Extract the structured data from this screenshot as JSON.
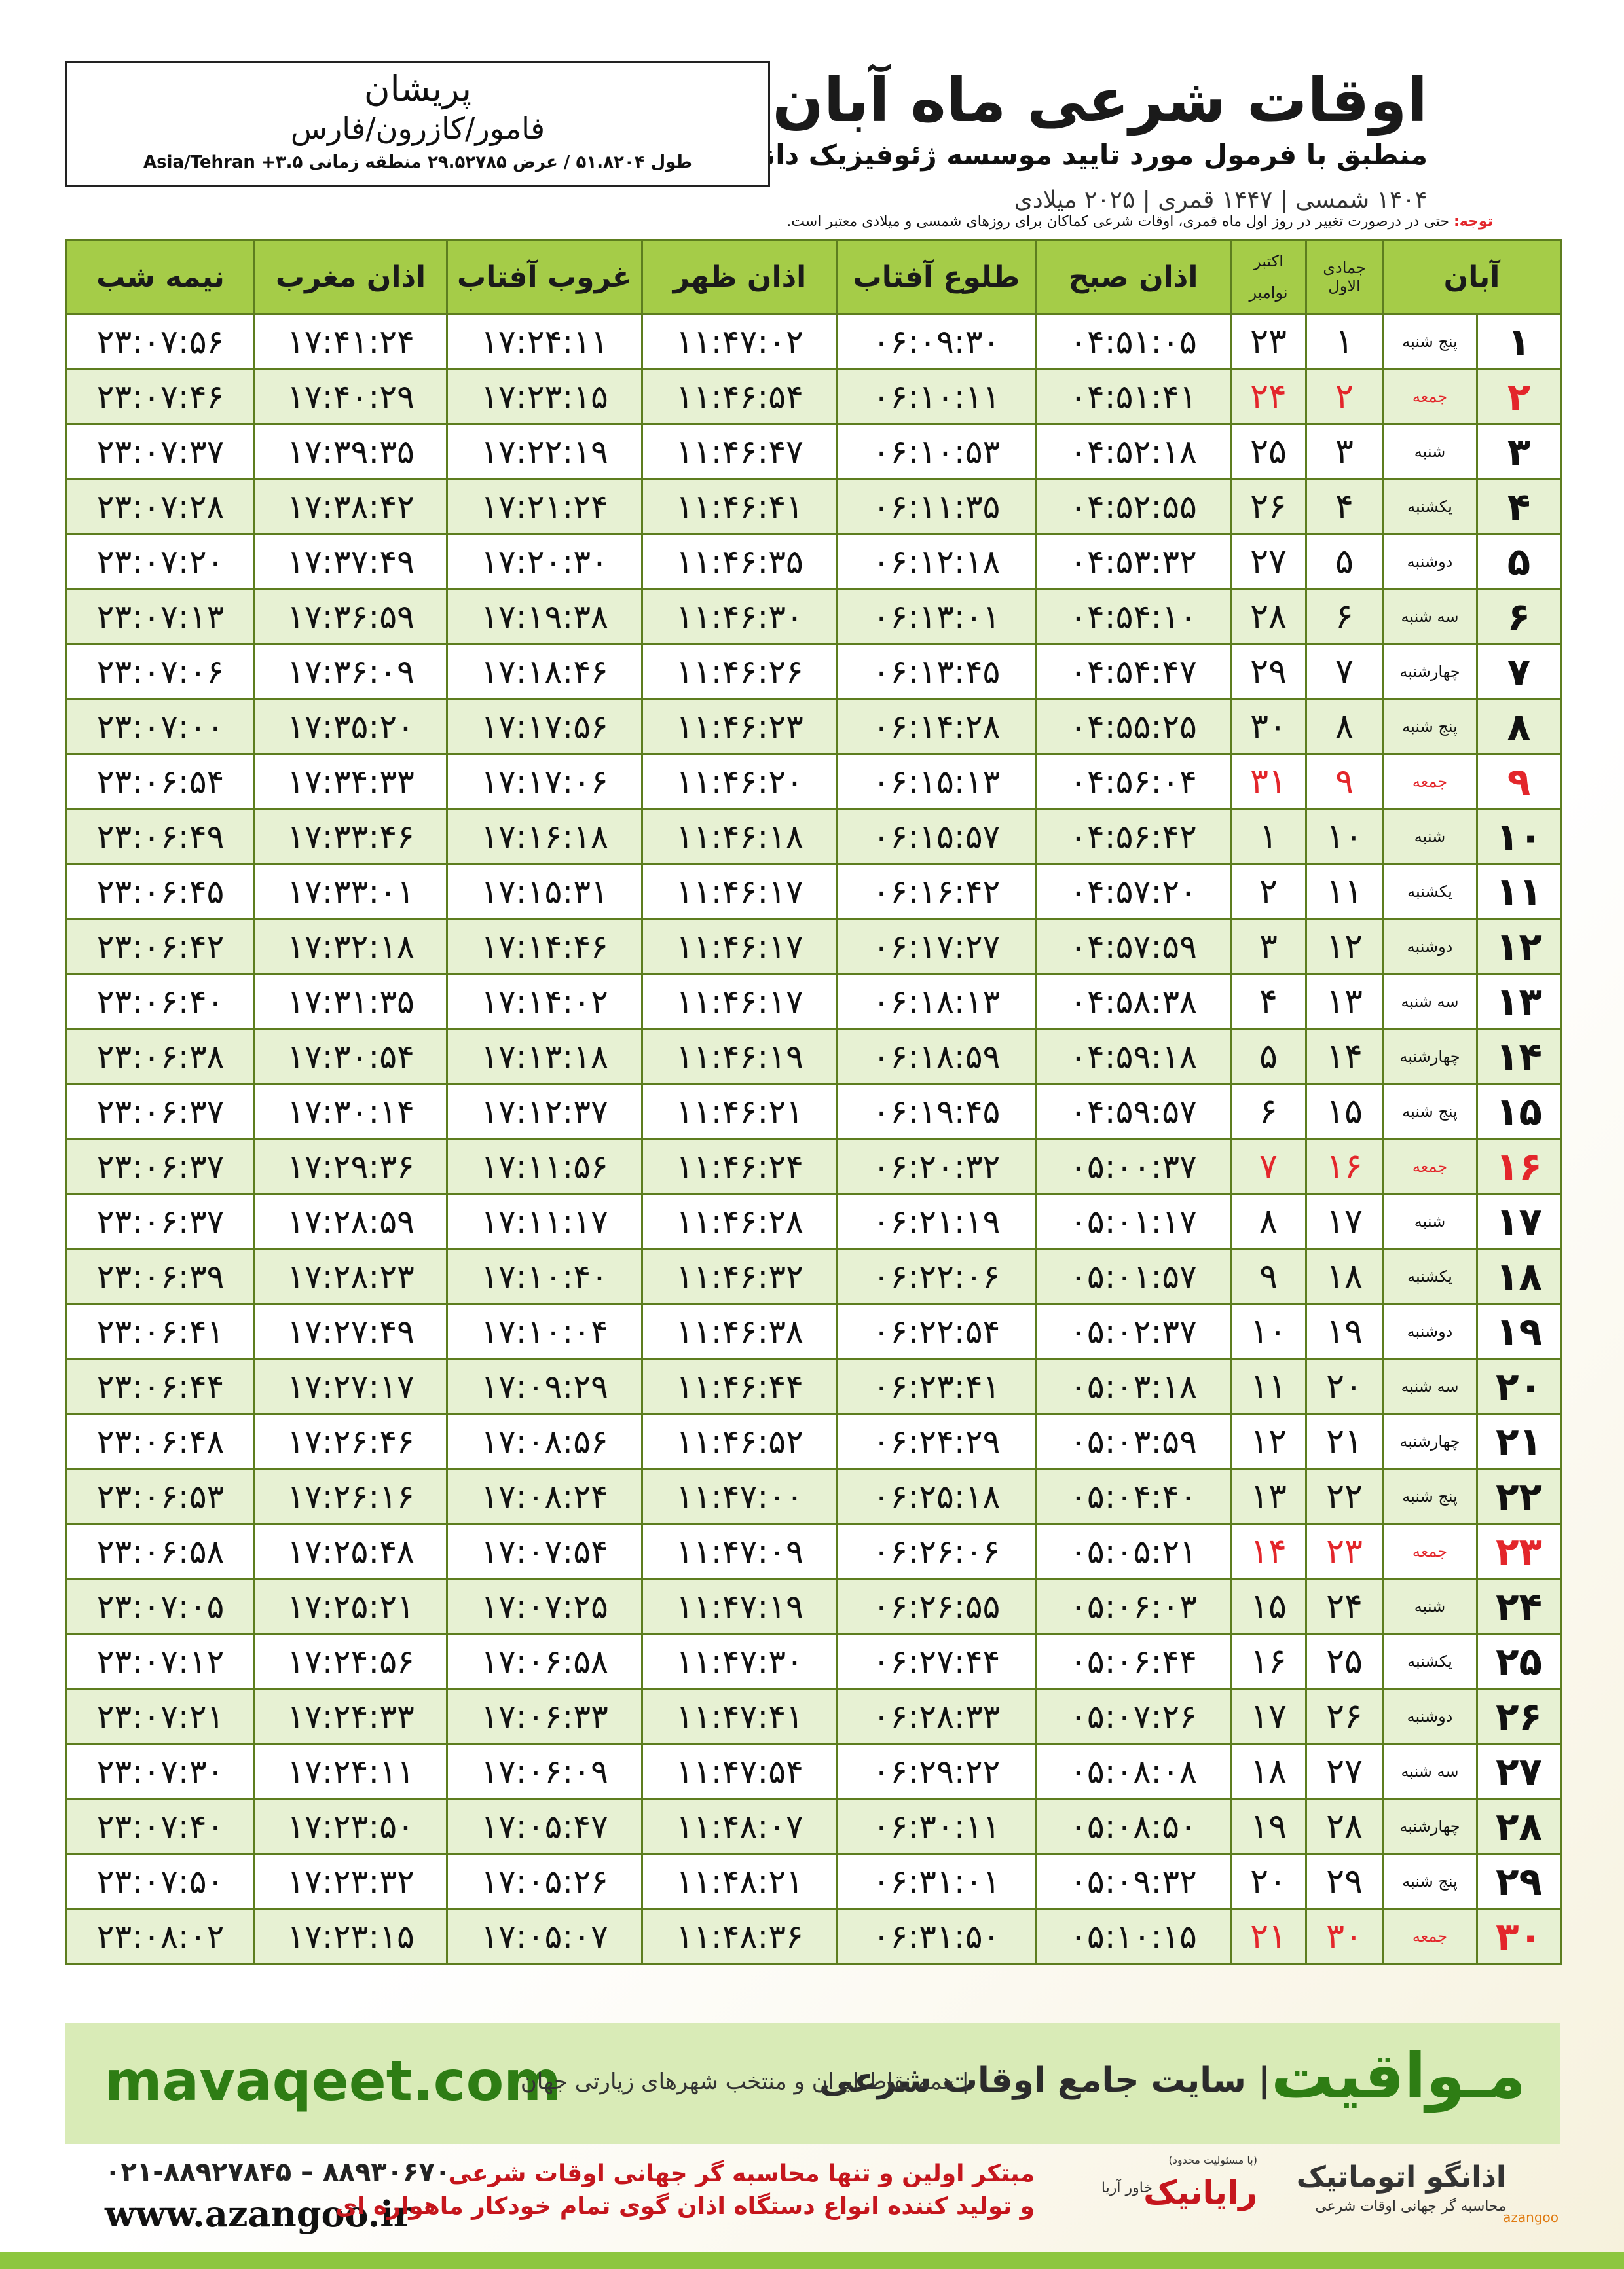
{
  "header": {
    "title": "اوقات شرعی ماه آبان",
    "subtitle": "منطبق با فرمول مورد تایید موسسه ژئوفیزیک دانشگاه تهران",
    "date_line": "۱۴۰۴ شمسی | ۱۴۴۷ قمری | ۲۰۲۵ میلادی"
  },
  "location": {
    "city": "پریشان",
    "region": "فامور/کازرون/فارس",
    "coords": "طول ۵۱.۸۲۰۴ / عرض ۲۹.۵۲۷۸۵ منطقه زمانی ۳.۵+ Asia/Tehran"
  },
  "note": {
    "label": "توجه:",
    "text": "حتی در درصورت تغییر در روز اول ماه قمری، اوقات شرعی کماکان برای روزهای شمسی و میلادی معتبر است."
  },
  "table": {
    "header": {
      "day": "آبان",
      "qamari": "جمادی الاول",
      "greg_1": "اکتبر",
      "greg_2": "نوامبر",
      "fajr": "اذان صبح",
      "sunrise": "طلوع آفتاب",
      "dhuhr": "اذان ظهر",
      "sunset": "غروب آفتاب",
      "maghrib": "اذان مغرب",
      "midnight": "نیمه شب"
    },
    "rows": [
      {
        "cells": [
          "۱",
          "پنج شنبه",
          "۱",
          "۲۳",
          "۰۴:۵۱:۰۵",
          "۰۶:۰۹:۳۰",
          "۱۱:۴۷:۰۲",
          "۱۷:۲۴:۱۱",
          "۱۷:۴۱:۲۴",
          "۲۳:۰۷:۵۶"
        ]
      },
      {
        "cells": [
          "۲",
          "جمعه",
          "۲",
          "۲۴",
          "۰۴:۵۱:۴۱",
          "۰۶:۱۰:۱۱",
          "۱۱:۴۶:۵۴",
          "۱۷:۲۳:۱۵",
          "۱۷:۴۰:۲۹",
          "۲۳:۰۷:۴۶"
        ],
        "color": "#e3262b"
      },
      {
        "cells": [
          "۳",
          "شنبه",
          "۳",
          "۲۵",
          "۰۴:۵۲:۱۸",
          "۰۶:۱۰:۵۳",
          "۱۱:۴۶:۴۷",
          "۱۷:۲۲:۱۹",
          "۱۷:۳۹:۳۵",
          "۲۳:۰۷:۳۷"
        ]
      },
      {
        "cells": [
          "۴",
          "یکشنبه",
          "۴",
          "۲۶",
          "۰۴:۵۲:۵۵",
          "۰۶:۱۱:۳۵",
          "۱۱:۴۶:۴۱",
          "۱۷:۲۱:۲۴",
          "۱۷:۳۸:۴۲",
          "۲۳:۰۷:۲۸"
        ]
      },
      {
        "cells": [
          "۵",
          "دوشنبه",
          "۵",
          "۲۷",
          "۰۴:۵۳:۳۲",
          "۰۶:۱۲:۱۸",
          "۱۱:۴۶:۳۵",
          "۱۷:۲۰:۳۰",
          "۱۷:۳۷:۴۹",
          "۲۳:۰۷:۲۰"
        ]
      },
      {
        "cells": [
          "۶",
          "سه شنبه",
          "۶",
          "۲۸",
          "۰۴:۵۴:۱۰",
          "۰۶:۱۳:۰۱",
          "۱۱:۴۶:۳۰",
          "۱۷:۱۹:۳۸",
          "۱۷:۳۶:۵۹",
          "۲۳:۰۷:۱۳"
        ]
      },
      {
        "cells": [
          "۷",
          "چهارشنبه",
          "۷",
          "۲۹",
          "۰۴:۵۴:۴۷",
          "۰۶:۱۳:۴۵",
          "۱۱:۴۶:۲۶",
          "۱۷:۱۸:۴۶",
          "۱۷:۳۶:۰۹",
          "۲۳:۰۷:۰۶"
        ]
      },
      {
        "cells": [
          "۸",
          "پنج شنبه",
          "۸",
          "۳۰",
          "۰۴:۵۵:۲۵",
          "۰۶:۱۴:۲۸",
          "۱۱:۴۶:۲۳",
          "۱۷:۱۷:۵۶",
          "۱۷:۳۵:۲۰",
          "۲۳:۰۷:۰۰"
        ]
      },
      {
        "cells": [
          "۹",
          "جمعه",
          "۹",
          "۳۱",
          "۰۴:۵۶:۰۴",
          "۰۶:۱۵:۱۳",
          "۱۱:۴۶:۲۰",
          "۱۷:۱۷:۰۶",
          "۱۷:۳۴:۳۳",
          "۲۳:۰۶:۵۴"
        ],
        "color": "#e3262b"
      },
      {
        "cells": [
          "۱۰",
          "شنبه",
          "۱۰",
          "۱",
          "۰۴:۵۶:۴۲",
          "۰۶:۱۵:۵۷",
          "۱۱:۴۶:۱۸",
          "۱۷:۱۶:۱۸",
          "۱۷:۳۳:۴۶",
          "۲۳:۰۶:۴۹"
        ]
      },
      {
        "cells": [
          "۱۱",
          "یکشنبه",
          "۱۱",
          "۲",
          "۰۴:۵۷:۲۰",
          "۰۶:۱۶:۴۲",
          "۱۱:۴۶:۱۷",
          "۱۷:۱۵:۳۱",
          "۱۷:۳۳:۰۱",
          "۲۳:۰۶:۴۵"
        ]
      },
      {
        "cells": [
          "۱۲",
          "دوشنبه",
          "۱۲",
          "۳",
          "۰۴:۵۷:۵۹",
          "۰۶:۱۷:۲۷",
          "۱۱:۴۶:۱۷",
          "۱۷:۱۴:۴۶",
          "۱۷:۳۲:۱۸",
          "۲۳:۰۶:۴۲"
        ]
      },
      {
        "cells": [
          "۱۳",
          "سه شنبه",
          "۱۳",
          "۴",
          "۰۴:۵۸:۳۸",
          "۰۶:۱۸:۱۳",
          "۱۱:۴۶:۱۷",
          "۱۷:۱۴:۰۲",
          "۱۷:۳۱:۳۵",
          "۲۳:۰۶:۴۰"
        ]
      },
      {
        "cells": [
          "۱۴",
          "چهارشنبه",
          "۱۴",
          "۵",
          "۰۴:۵۹:۱۸",
          "۰۶:۱۸:۵۹",
          "۱۱:۴۶:۱۹",
          "۱۷:۱۳:۱۸",
          "۱۷:۳۰:۵۴",
          "۲۳:۰۶:۳۸"
        ]
      },
      {
        "cells": [
          "۱۵",
          "پنج شنبه",
          "۱۵",
          "۶",
          "۰۴:۵۹:۵۷",
          "۰۶:۱۹:۴۵",
          "۱۱:۴۶:۲۱",
          "۱۷:۱۲:۳۷",
          "۱۷:۳۰:۱۴",
          "۲۳:۰۶:۳۷"
        ]
      },
      {
        "cells": [
          "۱۶",
          "جمعه",
          "۱۶",
          "۷",
          "۰۵:۰۰:۳۷",
          "۰۶:۲۰:۳۲",
          "۱۱:۴۶:۲۴",
          "۱۷:۱۱:۵۶",
          "۱۷:۲۹:۳۶",
          "۲۳:۰۶:۳۷"
        ],
        "color": "#e3262b"
      },
      {
        "cells": [
          "۱۷",
          "شنبه",
          "۱۷",
          "۸",
          "۰۵:۰۱:۱۷",
          "۰۶:۲۱:۱۹",
          "۱۱:۴۶:۲۸",
          "۱۷:۱۱:۱۷",
          "۱۷:۲۸:۵۹",
          "۲۳:۰۶:۳۷"
        ]
      },
      {
        "cells": [
          "۱۸",
          "یکشنبه",
          "۱۸",
          "۹",
          "۰۵:۰۱:۵۷",
          "۰۶:۲۲:۰۶",
          "۱۱:۴۶:۳۲",
          "۱۷:۱۰:۴۰",
          "۱۷:۲۸:۲۳",
          "۲۳:۰۶:۳۹"
        ]
      },
      {
        "cells": [
          "۱۹",
          "دوشنبه",
          "۱۹",
          "۱۰",
          "۰۵:۰۲:۳۷",
          "۰۶:۲۲:۵۴",
          "۱۱:۴۶:۳۸",
          "۱۷:۱۰:۰۴",
          "۱۷:۲۷:۴۹",
          "۲۳:۰۶:۴۱"
        ]
      },
      {
        "cells": [
          "۲۰",
          "سه شنبه",
          "۲۰",
          "۱۱",
          "۰۵:۰۳:۱۸",
          "۰۶:۲۳:۴۱",
          "۱۱:۴۶:۴۴",
          "۱۷:۰۹:۲۹",
          "۱۷:۲۷:۱۷",
          "۲۳:۰۶:۴۴"
        ]
      },
      {
        "cells": [
          "۲۱",
          "چهارشنبه",
          "۲۱",
          "۱۲",
          "۰۵:۰۳:۵۹",
          "۰۶:۲۴:۲۹",
          "۱۱:۴۶:۵۲",
          "۱۷:۰۸:۵۶",
          "۱۷:۲۶:۴۶",
          "۲۳:۰۶:۴۸"
        ]
      },
      {
        "cells": [
          "۲۲",
          "پنج شنبه",
          "۲۲",
          "۱۳",
          "۰۵:۰۴:۴۰",
          "۰۶:۲۵:۱۸",
          "۱۱:۴۷:۰۰",
          "۱۷:۰۸:۲۴",
          "۱۷:۲۶:۱۶",
          "۲۳:۰۶:۵۳"
        ]
      },
      {
        "cells": [
          "۲۳",
          "جمعه",
          "۲۳",
          "۱۴",
          "۰۵:۰۵:۲۱",
          "۰۶:۲۶:۰۶",
          "۱۱:۴۷:۰۹",
          "۱۷:۰۷:۵۴",
          "۱۷:۲۵:۴۸",
          "۲۳:۰۶:۵۸"
        ],
        "color": "#e3262b"
      },
      {
        "cells": [
          "۲۴",
          "شنبه",
          "۲۴",
          "۱۵",
          "۰۵:۰۶:۰۳",
          "۰۶:۲۶:۵۵",
          "۱۱:۴۷:۱۹",
          "۱۷:۰۷:۲۵",
          "۱۷:۲۵:۲۱",
          "۲۳:۰۷:۰۵"
        ]
      },
      {
        "cells": [
          "۲۵",
          "یکشنبه",
          "۲۵",
          "۱۶",
          "۰۵:۰۶:۴۴",
          "۰۶:۲۷:۴۴",
          "۱۱:۴۷:۳۰",
          "۱۷:۰۶:۵۸",
          "۱۷:۲۴:۵۶",
          "۲۳:۰۷:۱۲"
        ]
      },
      {
        "cells": [
          "۲۶",
          "دوشنبه",
          "۲۶",
          "۱۷",
          "۰۵:۰۷:۲۶",
          "۰۶:۲۸:۳۳",
          "۱۱:۴۷:۴۱",
          "۱۷:۰۶:۳۳",
          "۱۷:۲۴:۳۳",
          "۲۳:۰۷:۲۱"
        ]
      },
      {
        "cells": [
          "۲۷",
          "سه شنبه",
          "۲۷",
          "۱۸",
          "۰۵:۰۸:۰۸",
          "۰۶:۲۹:۲۲",
          "۱۱:۴۷:۵۴",
          "۱۷:۰۶:۰۹",
          "۱۷:۲۴:۱۱",
          "۲۳:۰۷:۳۰"
        ]
      },
      {
        "cells": [
          "۲۸",
          "چهارشنبه",
          "۲۸",
          "۱۹",
          "۰۵:۰۸:۵۰",
          "۰۶:۳۰:۱۱",
          "۱۱:۴۸:۰۷",
          "۱۷:۰۵:۴۷",
          "۱۷:۲۳:۵۰",
          "۲۳:۰۷:۴۰"
        ]
      },
      {
        "cells": [
          "۲۹",
          "پنج شنبه",
          "۲۹",
          "۲۰",
          "۰۵:۰۹:۳۲",
          "۰۶:۳۱:۰۱",
          "۱۱:۴۸:۲۱",
          "۱۷:۰۵:۲۶",
          "۱۷:۲۳:۳۲",
          "۲۳:۰۷:۵۰"
        ]
      },
      {
        "cells": [
          "۳۰",
          "جمعه",
          "۳۰",
          "۲۱",
          "۰۵:۱۰:۱۵",
          "۰۶:۳۱:۵۰",
          "۱۱:۴۸:۳۶",
          "۱۷:۰۵:۰۷",
          "۱۷:۲۳:۱۵",
          "۲۳:۰۸:۰۲"
        ],
        "color": "#e3262b"
      }
    ]
  },
  "footer": {
    "brand": "مـواقیت",
    "site_name": "| سایت جامع اوقات شرعی",
    "coverage": "| همه نقاط ایران و منتخب شهرهای زیارتی جهان",
    "url": "mavaqeet.com"
  },
  "contact": {
    "phone": "۰۲۱-۸۸۹۲۷۸۴۵ – ۸۸۹۳۰۶۷۰",
    "web": "www.azangoo.ir",
    "slogan_1": "مبتکر اولین و تنها محاسبه گر جهانی اوقات شرعی",
    "slogan_2": "و تولید کننده انواع دستگاه اذان گوی تمام خودکار ماهواره ای",
    "logo_azangoo": "اذانگو اتوماتیک",
    "logo_azangoo_sub": "محاسبه گر جهانی اوقات شرعی",
    "logo_azangoo_en": "azangoo",
    "logo_rayanik": "رایانیک",
    "logo_rayanik_sub": "خاور آریا",
    "logo_rayanik_note": "(با مسئولیت محدود)"
  }
}
